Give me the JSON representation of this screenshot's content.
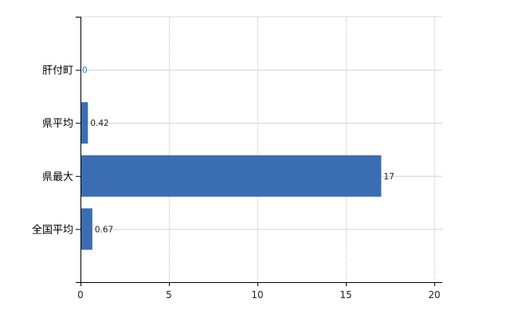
{
  "chart_data": {
    "type": "bar",
    "orientation": "horizontal",
    "categories": [
      "肝付町",
      "県平均",
      "県最大",
      "全国平均"
    ],
    "values": [
      0,
      0.42,
      17,
      0.67
    ],
    "data_labels": [
      "0",
      "0.42",
      "17",
      "0.67"
    ],
    "title": "",
    "xlabel": "",
    "ylabel": "",
    "xlim": [
      0,
      20
    ],
    "xticks": [
      "0",
      "5",
      "10",
      "15",
      "20"
    ],
    "grid": true,
    "bar_color": "#3b6db3"
  }
}
